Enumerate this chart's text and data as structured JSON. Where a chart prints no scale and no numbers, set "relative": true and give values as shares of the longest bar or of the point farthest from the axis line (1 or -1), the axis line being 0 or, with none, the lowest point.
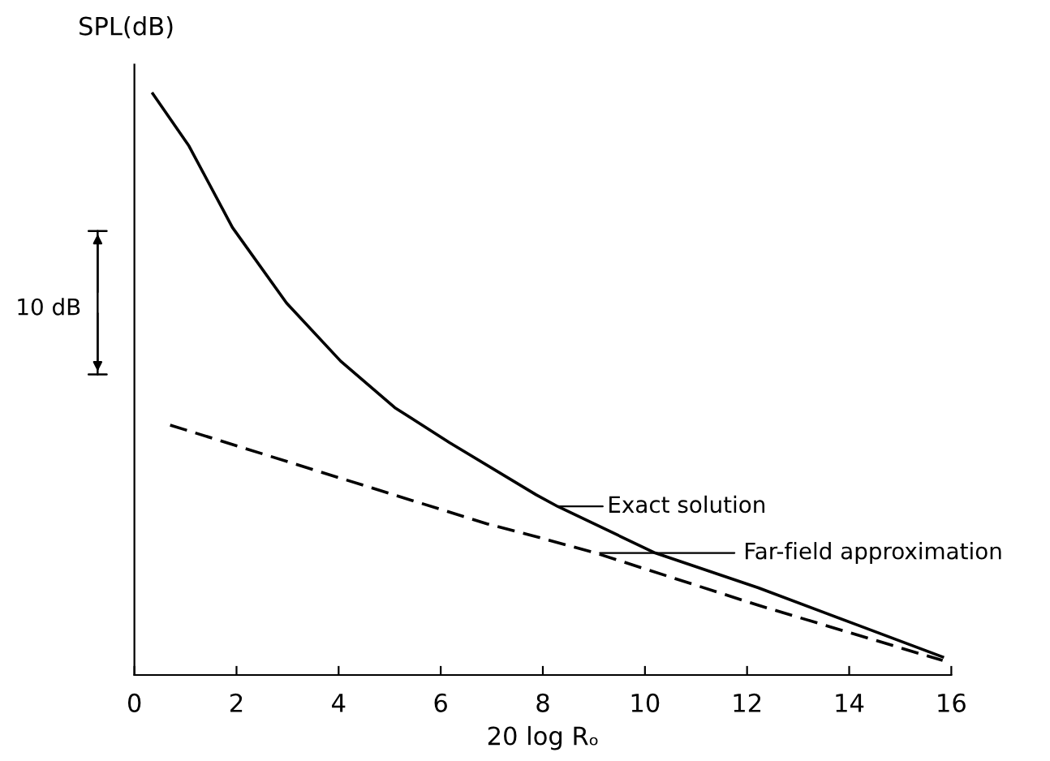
{
  "chart_data": {
    "type": "line",
    "relative": true,
    "ylabel": "SPL(dB)",
    "xlabel": "20 log Rₒ",
    "xlim": [
      0,
      16
    ],
    "xticks": [
      0,
      2,
      4,
      6,
      8,
      10,
      12,
      14,
      16
    ],
    "grid": false,
    "legend": false,
    "marker": "none",
    "series": [
      {
        "color": "#000000",
        "line_style": "solid",
        "x": [
          0.36,
          1.07,
          1.92,
          2.98,
          4.04,
          5.1,
          6.17,
          7.87,
          8.29,
          10.2,
          12.22,
          14.13,
          15.83
        ],
        "values": [
          1.0,
          0.91,
          0.77,
          0.64,
          0.54,
          0.46,
          0.4,
          0.31,
          0.29,
          0.21,
          0.15,
          0.087,
          0.031
        ]
      },
      {
        "color": "#000000",
        "line_style": "dashed",
        "x": [
          0.7,
          6.91,
          7.87,
          9.03,
          12.22,
          15.83
        ],
        "values": [
          0.43,
          0.26,
          0.238,
          0.21,
          0.12,
          0.025
        ]
      }
    ],
    "annotations": [
      {
        "text": "Exact solution",
        "x": 8.29,
        "y": 0.29
      },
      {
        "text": "Far-field approximation",
        "x": 9.03,
        "y": 0.21
      },
      "10 dB"
    ]
  }
}
